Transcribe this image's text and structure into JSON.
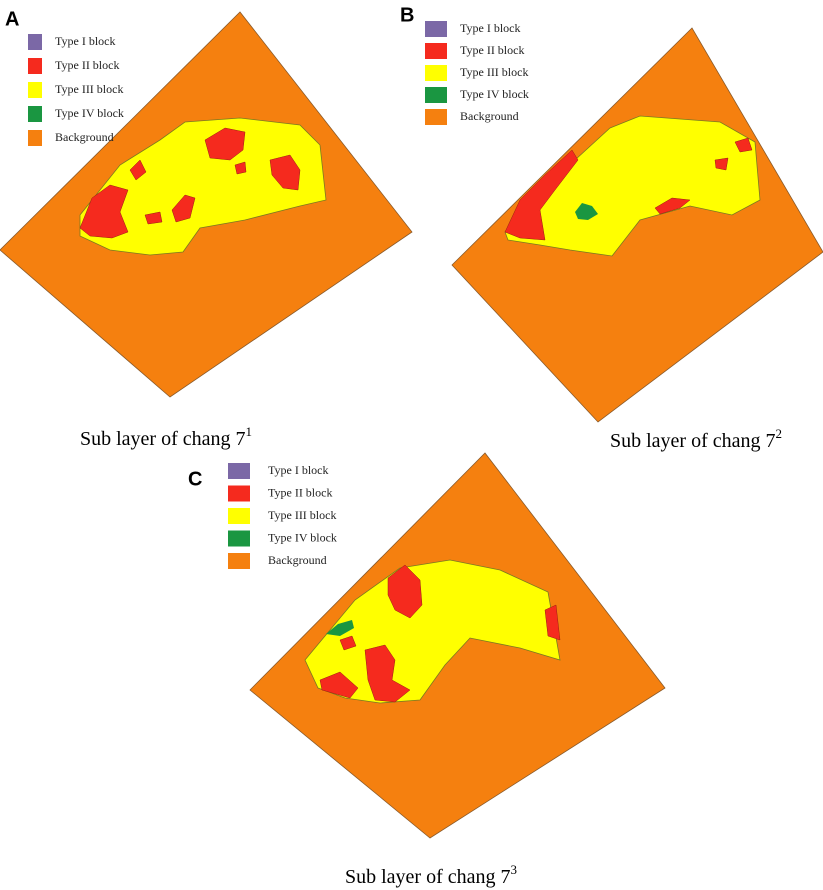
{
  "panels": [
    {
      "label": "A",
      "legend": [
        {
          "label": "Type I block",
          "color": "#7b68a6"
        },
        {
          "label": "Type II block",
          "color": "#f52a1e"
        },
        {
          "label": "Type III block",
          "color": "#ffff00"
        },
        {
          "label": "Type IV block",
          "color": "#1a9641"
        },
        {
          "label": "Background",
          "color": "#f5800f"
        }
      ],
      "caption": {
        "text": "Sub layer of chang 7",
        "superscript": "1"
      }
    },
    {
      "label": "B",
      "legend": [
        {
          "label": "Type I block",
          "color": "#7b68a6"
        },
        {
          "label": "Type II block",
          "color": "#f52a1e"
        },
        {
          "label": "Type III block",
          "color": "#ffff00"
        },
        {
          "label": "Type IV block",
          "color": "#1a9641"
        },
        {
          "label": "Background",
          "color": "#f5800f"
        }
      ],
      "caption": {
        "text": "Sub layer of chang 7",
        "superscript": "2"
      }
    },
    {
      "label": "C",
      "legend": [
        {
          "label": "Type I block",
          "color": "#7b68a6"
        },
        {
          "label": "Type II block",
          "color": "#f52a1e"
        },
        {
          "label": "Type III block",
          "color": "#ffff00"
        },
        {
          "label": "Type IV block",
          "color": "#1a9641"
        },
        {
          "label": "Background",
          "color": "#f5800f"
        }
      ],
      "caption": {
        "text": "Sub layer of chang 7",
        "superscript": "3"
      }
    }
  ]
}
